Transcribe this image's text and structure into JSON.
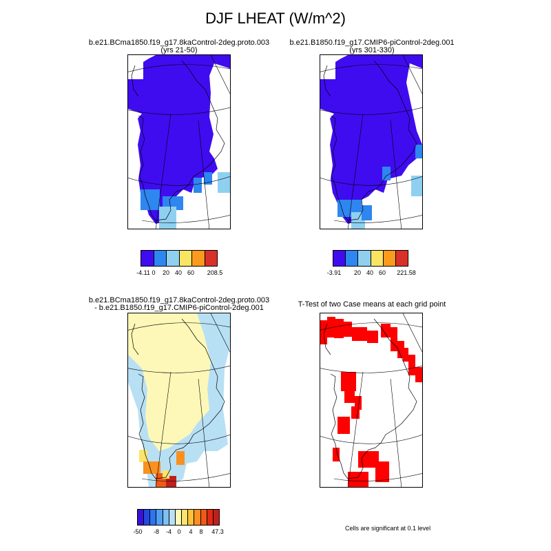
{
  "main_title": "DJF LHEAT (W/m^2)",
  "panels": [
    {
      "title_line1": "b.e21.BCma1850.f19_g17.8kaControl-2deg.proto.003",
      "title_line2": "(yrs 21-50)"
    },
    {
      "title_line1": "b.e21.B1850.f19_g17.CMIP6-piControl-2deg.001",
      "title_line2": "(yrs 301-330)"
    },
    {
      "title_line1": "b.e21.BCma1850.f19_g17.8kaControl-2deg.proto.003",
      "title_line2": "- b.e21.B1850.f19_g17.CMIP6-piControl-2deg.001"
    },
    {
      "title_line1": "T-Test of two Case means at each grid point",
      "title_line2": ""
    }
  ],
  "colorbars": [
    {
      "colors": [
        "#3f0cf0",
        "#2e86f0",
        "#8fd0f0",
        "#fae463",
        "#fa9a1e",
        "#d8312a"
      ],
      "labels": [
        "-4.11",
        "0",
        "20",
        "40",
        "60",
        "208.5"
      ]
    },
    {
      "colors": [
        "#3f0cf0",
        "#2e86f0",
        "#8fd0f0",
        "#fae463",
        "#fa9a1e",
        "#d8312a"
      ],
      "labels": [
        "-3.91",
        "20",
        "40",
        "60",
        "221.58"
      ]
    },
    {
      "colors": [
        "#3a10d8",
        "#2548e0",
        "#2d74ee",
        "#4fa0f2",
        "#7fc0f2",
        "#b8e0f4",
        "#fdf8b8",
        "#fbe46a",
        "#fbc23a",
        "#f99020",
        "#ef5a18",
        "#e02a14",
        "#c0201c"
      ],
      "labels": [
        "-50",
        "-8",
        "-4",
        "0",
        "4",
        "8",
        "47.3"
      ]
    }
  ],
  "footnote": "Cells are significant at 0.1 level",
  "colors": {
    "dark_blue": "#3f0cf0",
    "mid_blue": "#2e86f0",
    "light_blue": "#8fd0f0",
    "pale_blue": "#b8e0f4",
    "pale_yellow": "#fdf8b8",
    "yellow": "#fbe46a",
    "orange": "#f99020",
    "red_orange": "#ef5a18",
    "dark_red": "#c0201c",
    "significance_red": "#ff0000"
  }
}
